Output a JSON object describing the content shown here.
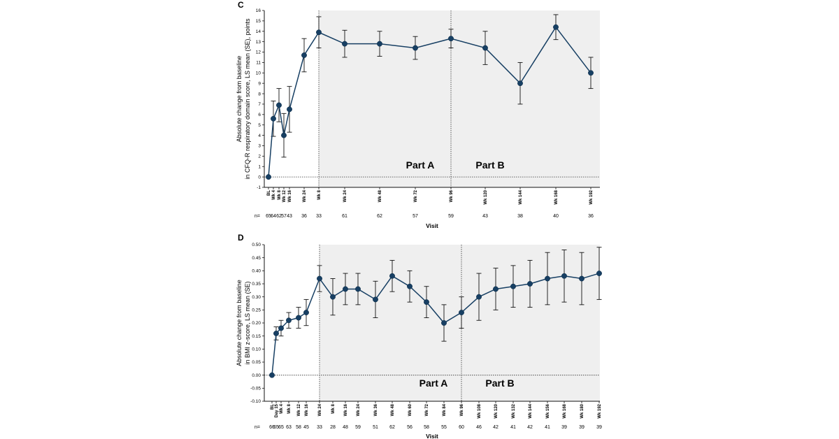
{
  "colors": {
    "line": "#173f63",
    "marker": "#173f63",
    "shade": "#efefef",
    "axis": "#111111"
  },
  "chart_data": [
    {
      "type": "line",
      "panel": "C",
      "ylabel_lines": [
        "Absolute change from baseline",
        "in CFQ-R respiratory domain score, LS mean (SE), points"
      ],
      "xlabel": "Visit",
      "ylim": [
        -1,
        16
      ],
      "yticks": [
        "-1",
        "0",
        "1",
        "2",
        "3",
        "4",
        "5",
        "6",
        "7",
        "8",
        "9",
        "10",
        "11",
        "12",
        "13",
        "14",
        "15",
        "16"
      ],
      "n_prefix": "n=",
      "categories": [
        "BL",
        "Wk 4",
        "Wk 8",
        "Wk 12",
        "Wk 16",
        "Wk 24",
        "Wk 8",
        "Wk 24",
        "Wk 48",
        "Wk 72",
        "Wk 96",
        "Wk 120",
        "Wk 144",
        "Wk 168",
        "Wk 192"
      ],
      "n_values": [
        "65",
        "64",
        "62",
        "57",
        "43",
        "36",
        "33",
        "61",
        "62",
        "57",
        "59",
        "43",
        "38",
        "40",
        "36"
      ],
      "values": [
        0,
        5.6,
        6.9,
        4.0,
        6.5,
        11.7,
        13.9,
        12.8,
        12.8,
        12.4,
        13.3,
        12.4,
        9.0,
        14.4,
        10.0
      ],
      "err": [
        0,
        1.7,
        1.6,
        2.1,
        2.2,
        1.6,
        1.5,
        1.3,
        1.2,
        1.1,
        0.9,
        1.6,
        2.0,
        1.2,
        1.5
      ],
      "parts": [
        "Part A",
        "Part B"
      ]
    },
    {
      "type": "line",
      "panel": "D",
      "ylabel_lines": [
        "Absolute change from baseline",
        "in BMI z-score, LS mean (SE)"
      ],
      "xlabel": "Visit",
      "ylim": [
        -0.1,
        0.5
      ],
      "yticks": [
        "-0.10",
        "-0.05",
        "0.00",
        "0.05",
        "0.10",
        "0.15",
        "0.20",
        "0.25",
        "0.30",
        "0.35",
        "0.40",
        "0.45",
        "0.50"
      ],
      "n_prefix": "n=",
      "categories": [
        "BL",
        "Day 15",
        "Wk 4",
        "Wk 8",
        "Wk 12",
        "Wk 16",
        "Wk 24",
        "Wk 8",
        "Wk 16",
        "Wk 24",
        "Wk 36",
        "Wk 48",
        "Wk 60",
        "Wk 72",
        "Wk 84",
        "Wk 96",
        "Wk 108",
        "Wk 120",
        "Wk 132",
        "Wk 144",
        "Wk 156",
        "Wk 168",
        "Wk 180",
        "Wk 192"
      ],
      "n_values": [
        "66",
        "65",
        "65",
        "63",
        "58",
        "45",
        "33",
        "28",
        "48",
        "59",
        "51",
        "62",
        "56",
        "58",
        "55",
        "60",
        "46",
        "42",
        "41",
        "42",
        "41",
        "39",
        "39",
        "39"
      ],
      "values": [
        0.0,
        0.16,
        0.18,
        0.21,
        0.22,
        0.24,
        0.37,
        0.3,
        0.33,
        0.33,
        0.29,
        0.38,
        0.34,
        0.28,
        0.2,
        0.24,
        0.3,
        0.33,
        0.34,
        0.35,
        0.37,
        0.38,
        0.37,
        0.39
      ],
      "err": [
        0,
        0.025,
        0.03,
        0.03,
        0.04,
        0.05,
        0.05,
        0.07,
        0.06,
        0.06,
        0.07,
        0.06,
        0.06,
        0.06,
        0.07,
        0.06,
        0.09,
        0.08,
        0.08,
        0.09,
        0.1,
        0.1,
        0.1,
        0.1
      ],
      "parts": [
        "Part A",
        "Part B"
      ]
    }
  ]
}
